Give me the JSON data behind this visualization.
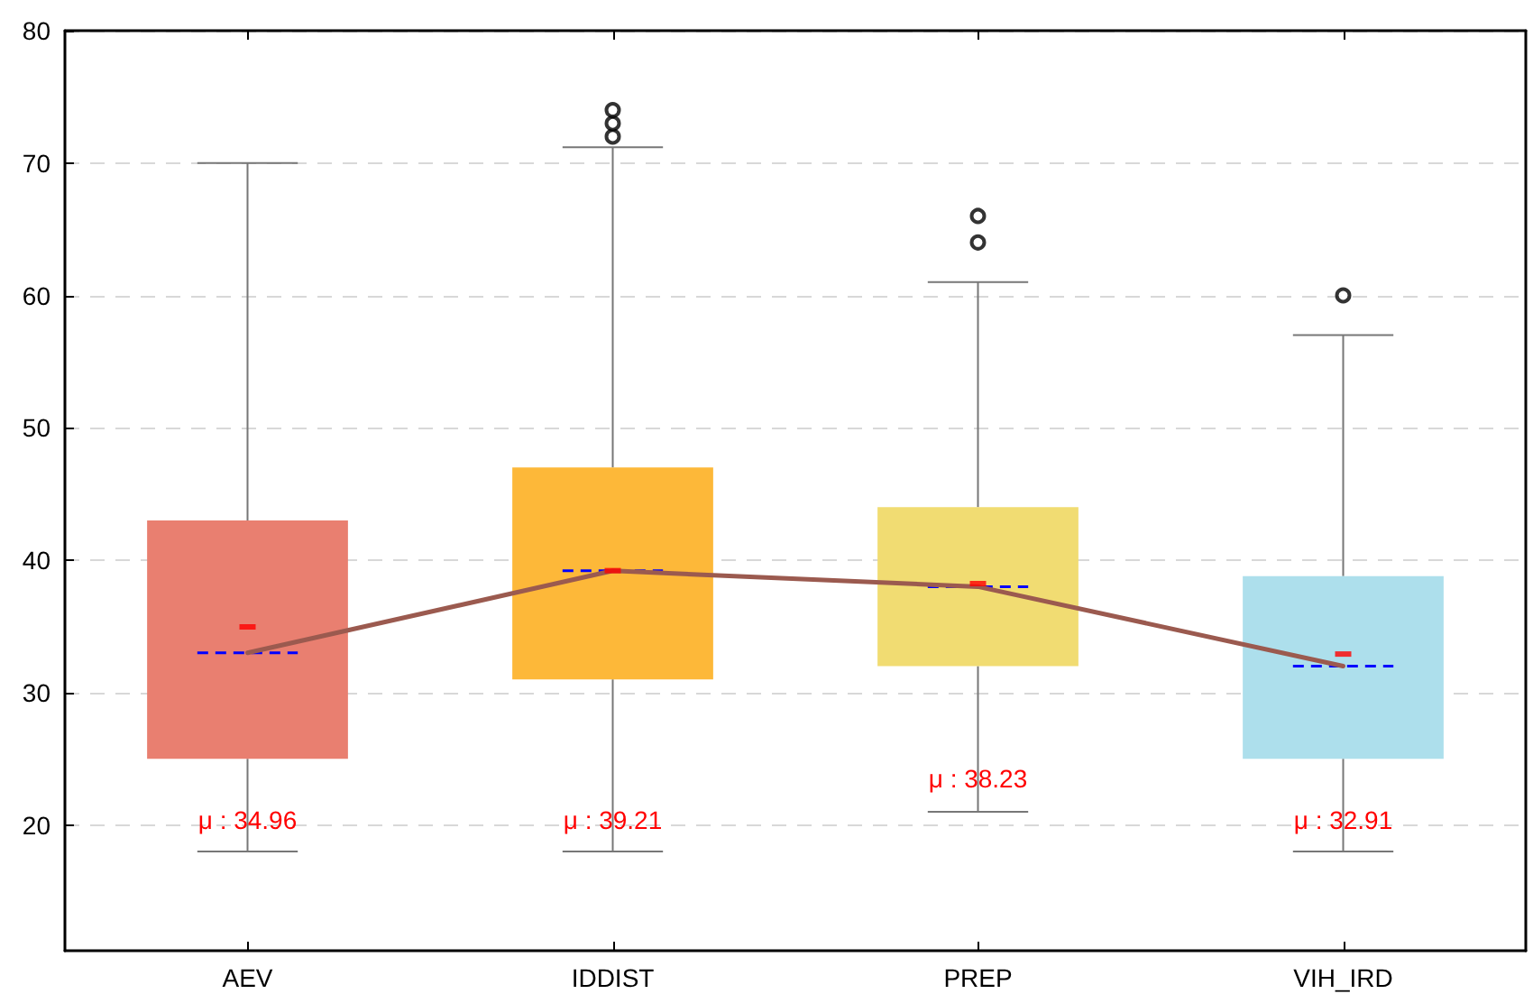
{
  "chart_data": {
    "type": "box",
    "categories": [
      "AEV",
      "IDDIST",
      "PREP",
      "VIH_IRD"
    ],
    "colors": [
      "#e97f70",
      "#fdb839",
      "#f1dc72",
      "#addfec"
    ],
    "boxes": [
      {
        "low": 18,
        "q1": 25,
        "median": 33,
        "q3": 43,
        "high": 70,
        "mean": 34.96
      },
      {
        "low": 18,
        "q1": 31,
        "median": 39.2,
        "q3": 47,
        "high": 71.2,
        "mean": 39.21,
        "outliers": [
          72,
          73,
          74
        ]
      },
      {
        "low": 21,
        "q1": 32,
        "median": 38,
        "q3": 44,
        "high": 61,
        "mean": 38.23,
        "outliers": [
          64,
          66
        ]
      },
      {
        "low": 18,
        "q1": 25,
        "median": 32,
        "q3": 38.8,
        "high": 57,
        "mean": 32.91,
        "outliers": [
          60
        ]
      }
    ],
    "series": [
      {
        "type": "line",
        "color": "#9b5a4f",
        "values": [
          33,
          39.2,
          38,
          32
        ],
        "marker": "none"
      }
    ],
    "annotations": [
      {
        "text": "μ : 34.96",
        "x": "AEV",
        "y": 20.4
      },
      {
        "text": "μ : 39.21",
        "x": "IDDIST",
        "y": 20.4
      },
      {
        "text": "μ : 38.23",
        "x": "PREP",
        "y": 23.5
      },
      {
        "text": "μ : 32.91",
        "x": "VIH_IRD",
        "y": 20.4
      }
    ],
    "ylim": [
      10.5,
      80
    ],
    "yticks": [
      20,
      30,
      40,
      50,
      60,
      70,
      80
    ],
    "grid": "y",
    "legend": false
  }
}
